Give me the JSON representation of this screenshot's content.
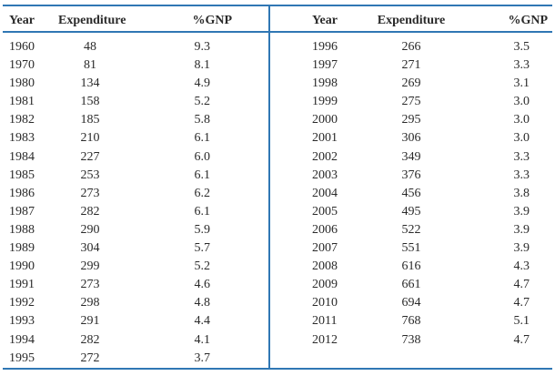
{
  "colors": {
    "rule_blue": "#3077b4",
    "text": "#2a2a2a",
    "background": "#ffffff"
  },
  "chart_data": {
    "type": "table",
    "title": "",
    "columns": [
      "Year",
      "Expenditure",
      "%GNP"
    ],
    "layout": "two side-by-side panels sharing the same three column headers; left panel rows 1960-1995, right panel rows 1996-2012; blue rules above header, below header, at bottom, and a vertical blue divider between panels",
    "rows": [
      [
        "1960",
        "48",
        "9.3"
      ],
      [
        "1970",
        "81",
        "8.1"
      ],
      [
        "1980",
        "134",
        "4.9"
      ],
      [
        "1981",
        "158",
        "5.2"
      ],
      [
        "1982",
        "185",
        "5.8"
      ],
      [
        "1983",
        "210",
        "6.1"
      ],
      [
        "1984",
        "227",
        "6.0"
      ],
      [
        "1985",
        "253",
        "6.1"
      ],
      [
        "1986",
        "273",
        "6.2"
      ],
      [
        "1987",
        "282",
        "6.1"
      ],
      [
        "1988",
        "290",
        "5.9"
      ],
      [
        "1989",
        "304",
        "5.7"
      ],
      [
        "1990",
        "299",
        "5.2"
      ],
      [
        "1991",
        "273",
        "4.6"
      ],
      [
        "1992",
        "298",
        "4.8"
      ],
      [
        "1993",
        "291",
        "4.4"
      ],
      [
        "1994",
        "282",
        "4.1"
      ],
      [
        "1995",
        "272",
        "3.7"
      ],
      [
        "1996",
        "266",
        "3.5"
      ],
      [
        "1997",
        "271",
        "3.3"
      ],
      [
        "1998",
        "269",
        "3.1"
      ],
      [
        "1999",
        "275",
        "3.0"
      ],
      [
        "2000",
        "295",
        "3.0"
      ],
      [
        "2001",
        "306",
        "3.0"
      ],
      [
        "2002",
        "349",
        "3.3"
      ],
      [
        "2003",
        "376",
        "3.3"
      ],
      [
        "2004",
        "456",
        "3.8"
      ],
      [
        "2005",
        "495",
        "3.9"
      ],
      [
        "2006",
        "522",
        "3.9"
      ],
      [
        "2007",
        "551",
        "3.9"
      ],
      [
        "2008",
        "616",
        "4.3"
      ],
      [
        "2009",
        "661",
        "4.7"
      ],
      [
        "2010",
        "694",
        "4.7"
      ],
      [
        "2011",
        "768",
        "5.1"
      ],
      [
        "2012",
        "738",
        "4.7"
      ]
    ],
    "left_panel_row_span": [
      0,
      18
    ],
    "right_panel_row_span": [
      18,
      35
    ]
  }
}
